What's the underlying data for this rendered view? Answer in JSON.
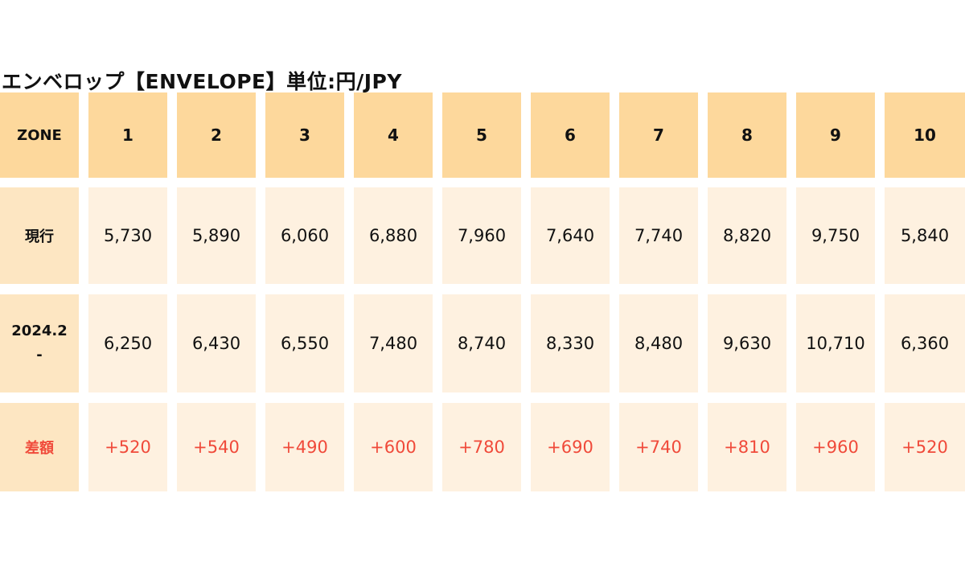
{
  "title": "エンベロップ【ENVELOPE】単位:円/JPY",
  "header": {
    "label": "ZONE",
    "zones": [
      "1",
      "2",
      "3",
      "4",
      "5",
      "6",
      "7",
      "8",
      "9",
      "10"
    ]
  },
  "rows": [
    {
      "label": "現行",
      "values": [
        "5,730",
        "5,890",
        "6,060",
        "6,880",
        "7,960",
        "7,640",
        "7,740",
        "8,820",
        "9,750",
        "5,840"
      ]
    },
    {
      "label": "2024.2\n-",
      "values": [
        "6,250",
        "6,430",
        "6,550",
        "7,480",
        "8,740",
        "8,330",
        "8,480",
        "9,630",
        "10,710",
        "6,360"
      ]
    },
    {
      "label": "差額",
      "values": [
        "+520",
        "+540",
        "+490",
        "+600",
        "+780",
        "+690",
        "+740",
        "+810",
        "+960",
        "+520"
      ]
    }
  ],
  "colors": {
    "header_bg": "#fdd89c",
    "label_bg": "#fde6c2",
    "value_bg": "#fef1e0",
    "diff_text": "#f04a3a"
  }
}
